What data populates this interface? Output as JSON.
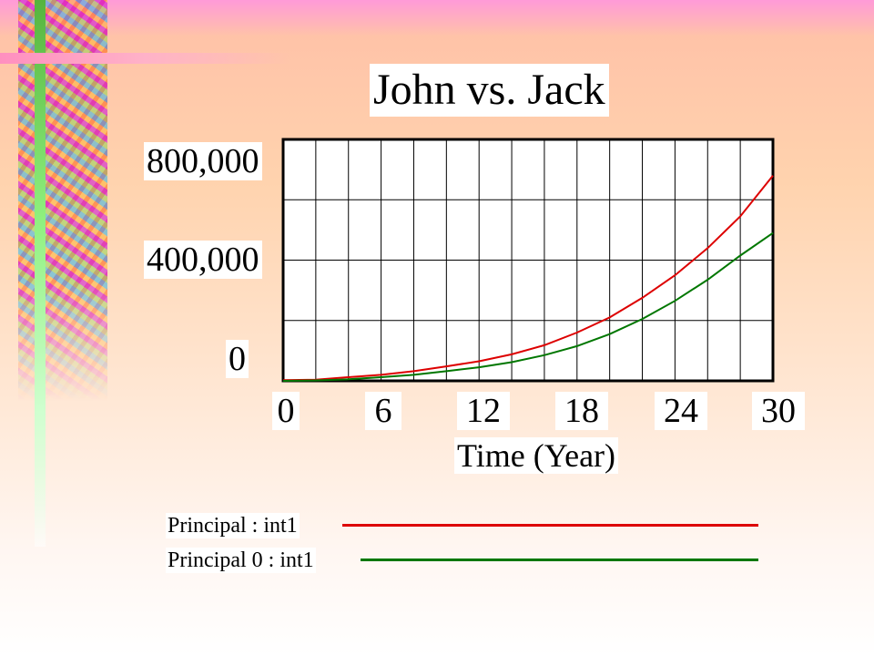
{
  "chart_data": {
    "type": "line",
    "title": "John vs. Jack",
    "xlabel": "Time (Year)",
    "ylabel": "",
    "xlim": [
      0,
      30
    ],
    "ylim": [
      0,
      800000
    ],
    "x_ticks": [
      "0",
      "6",
      "12",
      "18",
      "24",
      "30"
    ],
    "y_ticks": [
      "800,000",
      "400,000",
      "0"
    ],
    "grid": true,
    "legend_position": "below",
    "series": [
      {
        "name": "Principal : int1",
        "color": "#dd0000",
        "x": [
          0,
          2,
          4,
          6,
          8,
          10,
          12,
          14,
          16,
          18,
          20,
          22,
          24,
          26,
          28,
          30
        ],
        "values": [
          2000,
          4000,
          12000,
          20000,
          32000,
          48000,
          65000,
          88000,
          118000,
          160000,
          210000,
          275000,
          350000,
          440000,
          545000,
          680000
        ]
      },
      {
        "name": "Principal 0 : int1",
        "color": "#007700",
        "x": [
          0,
          2,
          4,
          6,
          8,
          10,
          12,
          14,
          16,
          18,
          20,
          22,
          24,
          26,
          28,
          30
        ],
        "values": [
          0,
          1500,
          5000,
          12000,
          20000,
          32000,
          45000,
          62000,
          85000,
          115000,
          155000,
          205000,
          265000,
          335000,
          415000,
          490000
        ]
      }
    ]
  }
}
